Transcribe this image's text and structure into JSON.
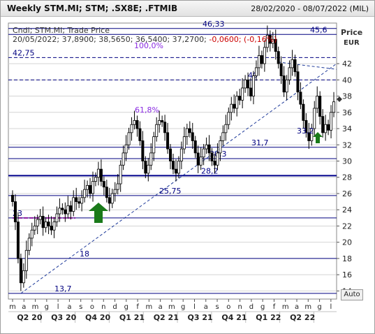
{
  "header": {
    "title": "Weekly STM.MI; STM; .SX8E; .FTMIB",
    "date_range": "28/02/2020 - 08/07/2022 (MIL)"
  },
  "legend": {
    "line1": "Cndl; STM.MI; Trade Price",
    "line2_date": "20/05/2022;",
    "line2_values": "37,8900; 38,5650; 36,5400; 37,2700;",
    "line2_change": "-0,0600; (-0,16%)"
  },
  "axis": {
    "currency_label": "Price",
    "unit_label": "EUR",
    "y_ticks": [
      "14",
      "16",
      "18",
      "20",
      "22",
      "24",
      "26",
      "28",
      "30",
      "32",
      "34",
      "36",
      "38",
      "40",
      "42"
    ],
    "months": [
      "m",
      "a",
      "m",
      "g",
      "l",
      "a",
      "s",
      "o",
      "n",
      "d",
      "g",
      "f",
      "m",
      "a",
      "m",
      "g",
      "l",
      "a",
      "s",
      "o",
      "n",
      "d",
      "g",
      "f",
      "m",
      "a",
      "m",
      "g",
      "l"
    ],
    "quarters": [
      "Q2 20",
      "Q3 20",
      "Q4 20",
      "Q1 21",
      "Q2 21",
      "Q3 21",
      "Q4 21",
      "Q1 22",
      "Q2 22"
    ],
    "auto_button": "Auto"
  },
  "annotations": {
    "levels": [
      "46,33",
      "45,6",
      "42,75",
      "40",
      "31,7",
      "30,3",
      "28,2",
      "25,75",
      "23",
      "18",
      "13,7"
    ],
    "fib_100": "100,0%",
    "fib_618": "61,8%",
    "label_33_2": "33,2"
  },
  "colors": {
    "candle_up": "#ffffff",
    "candle_down": "#000000",
    "level_line": "#000080",
    "thick_level": "#00008b",
    "fib_text": "#8a2be2",
    "arrow": "#1a7a1a",
    "change_red": "#cc0000"
  },
  "chart_data": {
    "type": "candlestick",
    "ylim": [
      13,
      47
    ],
    "period": "weekly",
    "last_bar": {
      "date": "20/05/2022",
      "open": 37.89,
      "high": 38.565,
      "low": 36.54,
      "close": 37.27,
      "change": -0.06,
      "change_pct": -0.16
    },
    "close": [
      25.0,
      22.5,
      18.0,
      15.0,
      16.5,
      19.0,
      20.5,
      21.5,
      22.0,
      22.8,
      23.2,
      21.8,
      22.5,
      22.0,
      21.5,
      22.5,
      23.5,
      24.2,
      24.0,
      23.5,
      24.5,
      23.8,
      25.5,
      25.0,
      24.8,
      25.5,
      26.5,
      27.0,
      26.0,
      27.5,
      28.0,
      29.0,
      27.5,
      26.8,
      25.5,
      24.8,
      26.0,
      26.5,
      27.2,
      29.5,
      31.0,
      32.0,
      33.5,
      34.5,
      35.0,
      34.0,
      32.5,
      30.0,
      28.5,
      29.5,
      31.0,
      33.0,
      34.5,
      35.0,
      34.8,
      33.5,
      31.5,
      30.0,
      29.0,
      28.5,
      30.0,
      31.5,
      33.0,
      34.0,
      33.5,
      32.5,
      31.0,
      29.5,
      30.5,
      31.5,
      32.0,
      31.0,
      30.0,
      29.5,
      31.0,
      32.5,
      33.5,
      34.5,
      36.0,
      37.0,
      36.5,
      38.0,
      37.5,
      39.0,
      40.0,
      39.0,
      38.0,
      40.5,
      41.5,
      43.0,
      42.0,
      44.0,
      45.5,
      44.5,
      45.0,
      43.5,
      42.0,
      40.5,
      38.5,
      40.0,
      41.5,
      42.5,
      41.0,
      38.5,
      37.0,
      35.0,
      33.5,
      32.5,
      34.0,
      36.5,
      38.0,
      35.5,
      33.5,
      34.5,
      33.8,
      36.0,
      37.3
    ],
    "levels": [
      46.33,
      45.6,
      42.75,
      40,
      31.7,
      30.3,
      28.2,
      25.75,
      23,
      18,
      13.7
    ],
    "fibonacci": [
      {
        "label": "100,0%",
        "value": 46.33
      },
      {
        "label": "61,8%",
        "value": 35.0
      }
    ],
    "trendline": {
      "from": 13.7,
      "to": 42.0
    }
  }
}
